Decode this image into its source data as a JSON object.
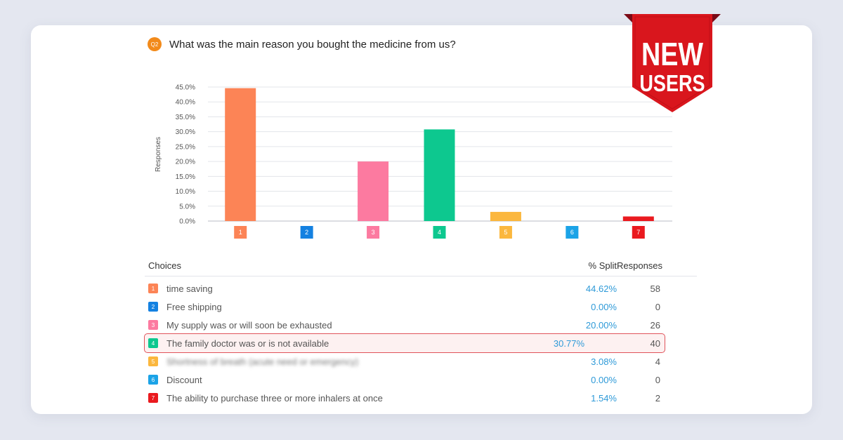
{
  "question": {
    "badge": "Q2",
    "text": "What was the main reason you bought the medicine from us?"
  },
  "ribbon": {
    "line1": "NEW",
    "line2": "USERS",
    "color": "#d9161d"
  },
  "chart_data": {
    "type": "bar",
    "categories": [
      "1",
      "2",
      "3",
      "4",
      "5",
      "6",
      "7"
    ],
    "values": [
      44.62,
      0.0,
      20.0,
      30.77,
      3.08,
      0.0,
      1.54
    ],
    "colors": [
      "#fc8456",
      "#1481e1",
      "#fc7aa0",
      "#0dc88f",
      "#fbb73e",
      "#1ba3e7",
      "#ea1a1f"
    ],
    "ylabel": "Responses",
    "ylim": [
      0,
      45
    ],
    "yticks": [
      "0.0%",
      "5.0%",
      "10.0%",
      "15.0%",
      "20.0%",
      "25.0%",
      "30.0%",
      "35.0%",
      "40.0%",
      "45.0%"
    ],
    "grid": true
  },
  "table": {
    "headers": {
      "choices": "Choices",
      "split": "% Split",
      "responses": "Responses"
    },
    "rows": [
      {
        "num": "1",
        "label": "time saving",
        "split": "44.62%",
        "responses": "58",
        "color": "#fc8456"
      },
      {
        "num": "2",
        "label": "Free shipping",
        "split": "0.00%",
        "responses": "0",
        "color": "#1481e1"
      },
      {
        "num": "3",
        "label": "My supply was or will soon be exhausted",
        "split": "20.00%",
        "responses": "26",
        "color": "#fc7aa0"
      },
      {
        "num": "4",
        "label": "The family doctor was or is not available",
        "split": "30.77%",
        "responses": "40",
        "color": "#0dc88f",
        "highlighted": true
      },
      {
        "num": "5",
        "label": "Shortness of breath (acute need or emergency)",
        "split": "3.08%",
        "responses": "4",
        "color": "#fbb73e",
        "blurred": true
      },
      {
        "num": "6",
        "label": "Discount",
        "split": "0.00%",
        "responses": "0",
        "color": "#1ba3e7"
      },
      {
        "num": "7",
        "label": "The ability to purchase three or more inhalers at once",
        "split": "1.54%",
        "responses": "2",
        "color": "#ea1a1f"
      }
    ]
  }
}
